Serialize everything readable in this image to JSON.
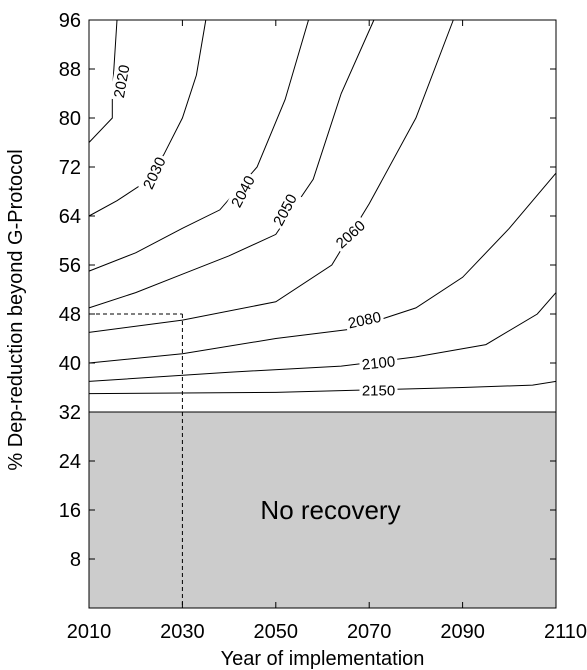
{
  "chart_data": {
    "type": "line",
    "xlabel": "Year of implementation",
    "ylabel": "% Dep-reduction beyond G-Protocol",
    "xlim": [
      2010,
      2110
    ],
    "ylim": [
      0,
      96
    ],
    "x_ticks": [
      2010,
      2030,
      2050,
      2070,
      2090,
      2110
    ],
    "y_ticks": [
      8,
      16,
      24,
      32,
      40,
      48,
      56,
      64,
      72,
      80,
      88,
      96
    ],
    "grid": false,
    "legend": "none",
    "no_recovery_region": {
      "label": "No recovery",
      "y_max": 32,
      "color": "#cccccc"
    },
    "reference_line": {
      "x": 2030,
      "y": 48,
      "style": "dashed"
    },
    "contours": [
      {
        "label": "2020",
        "label_at": [
          2017,
          86
        ],
        "label_angle": -80,
        "points": [
          [
            2010,
            76
          ],
          [
            2015,
            80
          ],
          [
            2015,
            84
          ],
          [
            2016,
            96
          ]
        ]
      },
      {
        "label": "2030",
        "label_at": [
          2024,
          71
        ],
        "label_angle": -65,
        "points": [
          [
            2010,
            64
          ],
          [
            2016,
            66.5
          ],
          [
            2022,
            69.5
          ],
          [
            2026,
            74
          ],
          [
            2030,
            80
          ],
          [
            2033,
            87
          ],
          [
            2035,
            96
          ]
        ]
      },
      {
        "label": "2040",
        "label_at": [
          2043,
          68
        ],
        "label_angle": -62,
        "points": [
          [
            2010,
            55
          ],
          [
            2020,
            58
          ],
          [
            2030,
            62
          ],
          [
            2038,
            65
          ],
          [
            2046,
            72
          ],
          [
            2052,
            83
          ],
          [
            2057,
            96
          ]
        ]
      },
      {
        "label": "2050",
        "label_at": [
          2052,
          65
        ],
        "label_angle": -62,
        "points": [
          [
            2010,
            49
          ],
          [
            2020,
            51.5
          ],
          [
            2030,
            54.5
          ],
          [
            2040,
            57.5
          ],
          [
            2050,
            61
          ],
          [
            2058,
            70
          ],
          [
            2064,
            84
          ],
          [
            2071,
            96
          ]
        ]
      },
      {
        "label": "2060",
        "label_at": [
          2066,
          61
        ],
        "label_angle": -42,
        "points": [
          [
            2010,
            45
          ],
          [
            2030,
            47
          ],
          [
            2050,
            50
          ],
          [
            2062,
            56
          ],
          [
            2070,
            66
          ],
          [
            2080,
            80
          ],
          [
            2088,
            96
          ]
        ]
      },
      {
        "label": "2080",
        "label_at": [
          2069,
          47
        ],
        "label_angle": -12,
        "points": [
          [
            2010,
            40
          ],
          [
            2030,
            41.5
          ],
          [
            2050,
            44
          ],
          [
            2066,
            45.5
          ],
          [
            2080,
            49
          ],
          [
            2090,
            54
          ],
          [
            2100,
            62
          ],
          [
            2110,
            71
          ]
        ]
      },
      {
        "label": "2100",
        "label_at": [
          2072,
          40
        ],
        "label_angle": -6,
        "points": [
          [
            2010,
            37
          ],
          [
            2040,
            38.5
          ],
          [
            2064,
            39.5
          ],
          [
            2080,
            41
          ],
          [
            2095,
            43
          ],
          [
            2106,
            48
          ],
          [
            2110,
            51.5
          ]
        ]
      },
      {
        "label": "2150",
        "label_at": [
          2072,
          35.5
        ],
        "label_angle": 0,
        "points": [
          [
            2010,
            35
          ],
          [
            2050,
            35.2
          ],
          [
            2070,
            35.6
          ],
          [
            2090,
            36
          ],
          [
            2105,
            36.4
          ],
          [
            2110,
            37
          ]
        ]
      }
    ]
  }
}
